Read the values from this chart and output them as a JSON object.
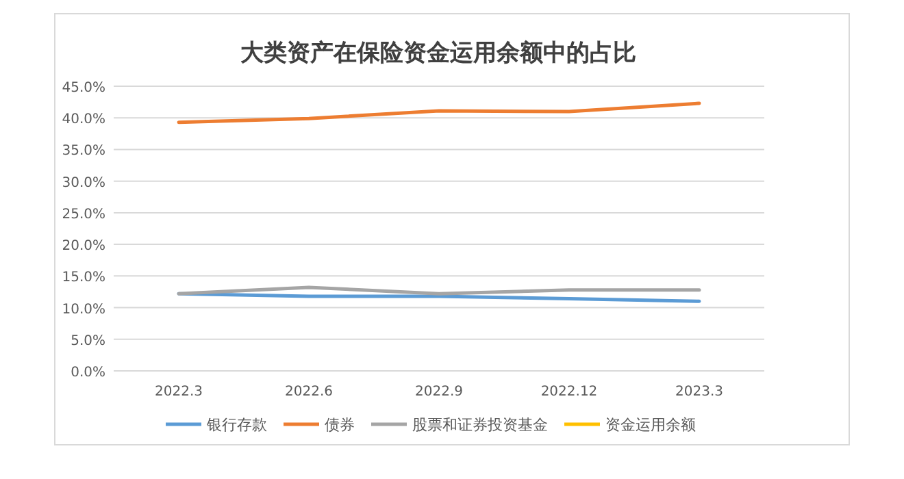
{
  "chart_data": {
    "type": "line",
    "title": "大类资产在保险资金运用余额中的占比",
    "categories": [
      "2022.3",
      "2022.6",
      "2022.9",
      "2022.12",
      "2023.3"
    ],
    "series": [
      {
        "name": "银行存款",
        "color": "#5b9bd5",
        "values": [
          12.2,
          11.8,
          11.8,
          11.4,
          11.0
        ]
      },
      {
        "name": "债券",
        "color": "#ed7d31",
        "values": [
          39.3,
          39.9,
          41.1,
          41.0,
          42.3
        ]
      },
      {
        "name": "股票和证券投资基金",
        "color": "#a5a5a5",
        "values": [
          12.2,
          13.2,
          12.2,
          12.8,
          12.8
        ]
      },
      {
        "name": "资金运用余额",
        "color": "#ffc000",
        "values": [
          null,
          null,
          null,
          null,
          null
        ]
      }
    ],
    "ylim": [
      0,
      45
    ],
    "yticks": [
      {
        "value": 0,
        "label": "0.0%"
      },
      {
        "value": 5,
        "label": "5.0%"
      },
      {
        "value": 10,
        "label": "10.0%"
      },
      {
        "value": 15,
        "label": "15.0%"
      },
      {
        "value": 20,
        "label": "20.0%"
      },
      {
        "value": 25,
        "label": "25.0%"
      },
      {
        "value": 30,
        "label": "30.0%"
      },
      {
        "value": 35,
        "label": "35.0%"
      },
      {
        "value": 40,
        "label": "40.0%"
      },
      {
        "value": 45,
        "label": "45.0%"
      }
    ],
    "grid": "y",
    "legend": "bottom",
    "line_style": "solid",
    "marker": "none"
  }
}
